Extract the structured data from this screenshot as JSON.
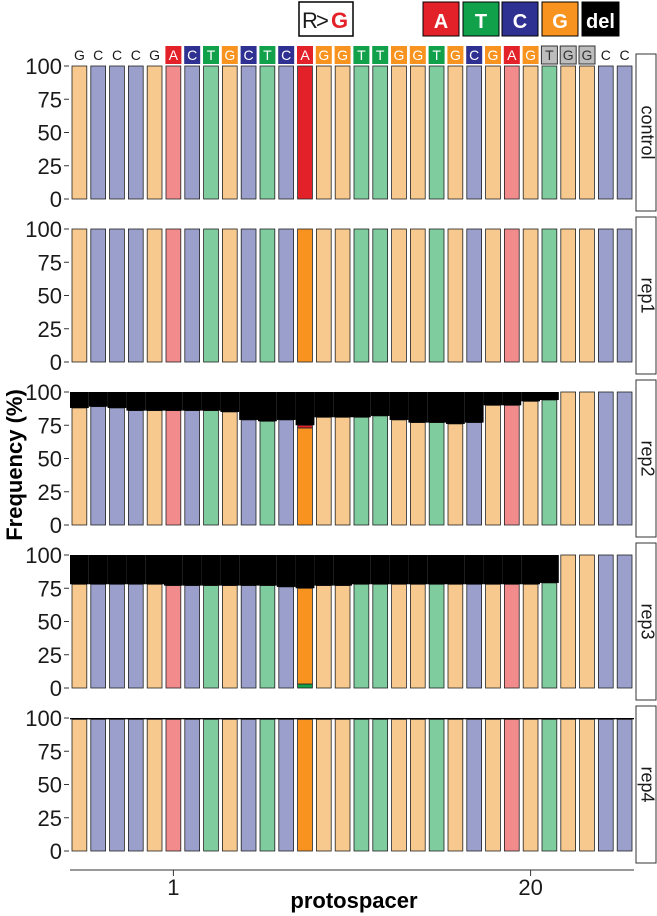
{
  "colors": {
    "A": "#f28b8b",
    "T": "#7fcc9e",
    "C": "#9b9fcc",
    "G": "#f7c98e",
    "A_strong": "#e32128",
    "T_strong": "#12a14b",
    "C_strong": "#2f3192",
    "G_strong": "#f7931e",
    "del": "#000000",
    "ref_grey": "#bdbdbd",
    "mut_label": "#e32128"
  },
  "header": {
    "mutation_label_parts": [
      "R",
      ">",
      "G"
    ],
    "legend": [
      {
        "key": "A",
        "label": "A",
        "color": "#e32128"
      },
      {
        "key": "T",
        "label": "T",
        "color": "#12a14b"
      },
      {
        "key": "C",
        "label": "C",
        "color": "#2f3192"
      },
      {
        "key": "G",
        "label": "G",
        "color": "#f7931e"
      },
      {
        "key": "del",
        "label": "del",
        "color": "#000000"
      }
    ]
  },
  "chart_data": {
    "type": "bar",
    "stacked": true,
    "title": "",
    "xlabel": "protospacer",
    "ylabel": "Frequency (%)",
    "ylim": [
      0,
      100
    ],
    "yticks": [
      0,
      25,
      50,
      75,
      100
    ],
    "xtick_labels": [
      {
        "position": 6,
        "label": "1"
      },
      {
        "position": 25,
        "label": "20"
      }
    ],
    "reference_sequence": [
      "G",
      "C",
      "C",
      "C",
      "G",
      "A",
      "C",
      "T",
      "G",
      "C",
      "T",
      "C",
      "A",
      "G",
      "G",
      "T",
      "T",
      "G",
      "G",
      "T",
      "G",
      "C",
      "G",
      "A",
      "G",
      "T",
      "G",
      "G",
      "C",
      "C"
    ],
    "sequence_box_style": [
      "none",
      "none",
      "none",
      "none",
      "none",
      "box",
      "box",
      "box",
      "box",
      "box",
      "box",
      "box",
      "box",
      "box",
      "box",
      "box",
      "box",
      "box",
      "box",
      "box",
      "box",
      "box",
      "box",
      "box",
      "box",
      "grey",
      "grey",
      "grey",
      "none",
      "none"
    ],
    "edit_position": 13,
    "panels": [
      {
        "name": "control",
        "del": [
          0,
          0,
          0,
          0,
          0,
          0,
          0,
          0,
          0,
          0,
          0,
          0,
          0,
          0,
          0,
          0,
          0,
          0,
          0,
          0,
          0,
          0,
          0,
          0,
          0,
          0,
          0,
          0,
          0,
          0
        ],
        "edit_other": {}
      },
      {
        "name": "rep1",
        "del": [
          0,
          0,
          0,
          0,
          0,
          0,
          0,
          0,
          0,
          0,
          0,
          0,
          0,
          0,
          0,
          0,
          0,
          0,
          0,
          0,
          0,
          0,
          0,
          0,
          0,
          0,
          0,
          0,
          0,
          0
        ],
        "edit_other": {}
      },
      {
        "name": "rep2",
        "del": [
          12,
          11,
          12,
          14,
          14,
          14,
          14,
          14,
          15,
          21,
          22,
          21,
          25,
          19,
          19,
          19,
          18,
          21,
          23,
          23,
          24,
          23,
          10,
          10,
          7,
          6,
          0,
          0,
          0,
          0
        ],
        "edit_other": {
          "A": 2
        }
      },
      {
        "name": "rep3",
        "del": [
          22,
          22,
          22,
          22,
          22,
          23,
          23,
          23,
          23,
          23,
          23,
          24,
          25,
          23,
          23,
          22,
          22,
          22,
          22,
          22,
          22,
          22,
          22,
          22,
          22,
          21,
          0,
          0,
          0,
          0
        ],
        "edit_other": {
          "T": 3
        }
      },
      {
        "name": "rep4",
        "del": [
          1,
          1,
          1,
          1,
          1,
          1,
          1,
          1,
          1,
          1,
          1,
          1,
          1,
          1,
          1,
          1,
          1,
          1,
          1,
          1,
          1,
          1,
          1,
          1,
          1,
          1,
          1,
          1,
          1,
          1
        ],
        "edit_other": {}
      }
    ]
  }
}
